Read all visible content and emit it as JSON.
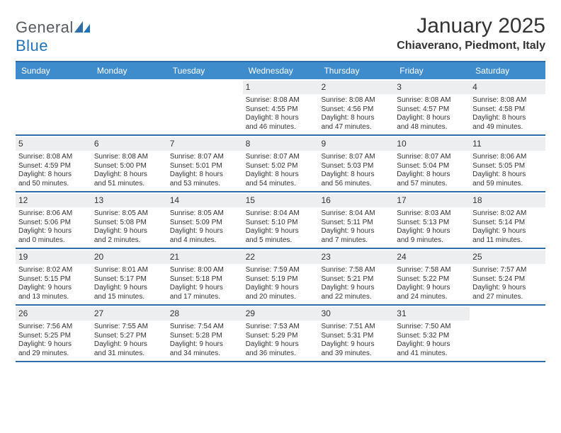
{
  "brand": {
    "word1": "General",
    "word2": "Blue"
  },
  "title": "January 2025",
  "location": "Chiaverano, Piedmont, Italy",
  "colors": {
    "header_bg": "#3e8ccc",
    "header_text": "#ffffff",
    "rule": "#2f6fa8",
    "daynum_bg": "#eceef0",
    "body_text": "#333333",
    "logo_gray": "#555b61",
    "logo_blue": "#2173b8",
    "page_bg": "#ffffff"
  },
  "typography": {
    "month_title_pt": 30,
    "location_pt": 16,
    "dayhdr_pt": 12,
    "daynum_pt": 12,
    "body_pt": 10,
    "logo_pt": 22
  },
  "day_headers": [
    "Sunday",
    "Monday",
    "Tuesday",
    "Wednesday",
    "Thursday",
    "Friday",
    "Saturday"
  ],
  "weeks": [
    [
      {
        "n": "",
        "sr": "",
        "ss": "",
        "d1": "",
        "d2": ""
      },
      {
        "n": "",
        "sr": "",
        "ss": "",
        "d1": "",
        "d2": ""
      },
      {
        "n": "",
        "sr": "",
        "ss": "",
        "d1": "",
        "d2": ""
      },
      {
        "n": "1",
        "sr": "Sunrise: 8:08 AM",
        "ss": "Sunset: 4:55 PM",
        "d1": "Daylight: 8 hours",
        "d2": "and 46 minutes."
      },
      {
        "n": "2",
        "sr": "Sunrise: 8:08 AM",
        "ss": "Sunset: 4:56 PM",
        "d1": "Daylight: 8 hours",
        "d2": "and 47 minutes."
      },
      {
        "n": "3",
        "sr": "Sunrise: 8:08 AM",
        "ss": "Sunset: 4:57 PM",
        "d1": "Daylight: 8 hours",
        "d2": "and 48 minutes."
      },
      {
        "n": "4",
        "sr": "Sunrise: 8:08 AM",
        "ss": "Sunset: 4:58 PM",
        "d1": "Daylight: 8 hours",
        "d2": "and 49 minutes."
      }
    ],
    [
      {
        "n": "5",
        "sr": "Sunrise: 8:08 AM",
        "ss": "Sunset: 4:59 PM",
        "d1": "Daylight: 8 hours",
        "d2": "and 50 minutes."
      },
      {
        "n": "6",
        "sr": "Sunrise: 8:08 AM",
        "ss": "Sunset: 5:00 PM",
        "d1": "Daylight: 8 hours",
        "d2": "and 51 minutes."
      },
      {
        "n": "7",
        "sr": "Sunrise: 8:07 AM",
        "ss": "Sunset: 5:01 PM",
        "d1": "Daylight: 8 hours",
        "d2": "and 53 minutes."
      },
      {
        "n": "8",
        "sr": "Sunrise: 8:07 AM",
        "ss": "Sunset: 5:02 PM",
        "d1": "Daylight: 8 hours",
        "d2": "and 54 minutes."
      },
      {
        "n": "9",
        "sr": "Sunrise: 8:07 AM",
        "ss": "Sunset: 5:03 PM",
        "d1": "Daylight: 8 hours",
        "d2": "and 56 minutes."
      },
      {
        "n": "10",
        "sr": "Sunrise: 8:07 AM",
        "ss": "Sunset: 5:04 PM",
        "d1": "Daylight: 8 hours",
        "d2": "and 57 minutes."
      },
      {
        "n": "11",
        "sr": "Sunrise: 8:06 AM",
        "ss": "Sunset: 5:05 PM",
        "d1": "Daylight: 8 hours",
        "d2": "and 59 minutes."
      }
    ],
    [
      {
        "n": "12",
        "sr": "Sunrise: 8:06 AM",
        "ss": "Sunset: 5:06 PM",
        "d1": "Daylight: 9 hours",
        "d2": "and 0 minutes."
      },
      {
        "n": "13",
        "sr": "Sunrise: 8:05 AM",
        "ss": "Sunset: 5:08 PM",
        "d1": "Daylight: 9 hours",
        "d2": "and 2 minutes."
      },
      {
        "n": "14",
        "sr": "Sunrise: 8:05 AM",
        "ss": "Sunset: 5:09 PM",
        "d1": "Daylight: 9 hours",
        "d2": "and 4 minutes."
      },
      {
        "n": "15",
        "sr": "Sunrise: 8:04 AM",
        "ss": "Sunset: 5:10 PM",
        "d1": "Daylight: 9 hours",
        "d2": "and 5 minutes."
      },
      {
        "n": "16",
        "sr": "Sunrise: 8:04 AM",
        "ss": "Sunset: 5:11 PM",
        "d1": "Daylight: 9 hours",
        "d2": "and 7 minutes."
      },
      {
        "n": "17",
        "sr": "Sunrise: 8:03 AM",
        "ss": "Sunset: 5:13 PM",
        "d1": "Daylight: 9 hours",
        "d2": "and 9 minutes."
      },
      {
        "n": "18",
        "sr": "Sunrise: 8:02 AM",
        "ss": "Sunset: 5:14 PM",
        "d1": "Daylight: 9 hours",
        "d2": "and 11 minutes."
      }
    ],
    [
      {
        "n": "19",
        "sr": "Sunrise: 8:02 AM",
        "ss": "Sunset: 5:15 PM",
        "d1": "Daylight: 9 hours",
        "d2": "and 13 minutes."
      },
      {
        "n": "20",
        "sr": "Sunrise: 8:01 AM",
        "ss": "Sunset: 5:17 PM",
        "d1": "Daylight: 9 hours",
        "d2": "and 15 minutes."
      },
      {
        "n": "21",
        "sr": "Sunrise: 8:00 AM",
        "ss": "Sunset: 5:18 PM",
        "d1": "Daylight: 9 hours",
        "d2": "and 17 minutes."
      },
      {
        "n": "22",
        "sr": "Sunrise: 7:59 AM",
        "ss": "Sunset: 5:19 PM",
        "d1": "Daylight: 9 hours",
        "d2": "and 20 minutes."
      },
      {
        "n": "23",
        "sr": "Sunrise: 7:58 AM",
        "ss": "Sunset: 5:21 PM",
        "d1": "Daylight: 9 hours",
        "d2": "and 22 minutes."
      },
      {
        "n": "24",
        "sr": "Sunrise: 7:58 AM",
        "ss": "Sunset: 5:22 PM",
        "d1": "Daylight: 9 hours",
        "d2": "and 24 minutes."
      },
      {
        "n": "25",
        "sr": "Sunrise: 7:57 AM",
        "ss": "Sunset: 5:24 PM",
        "d1": "Daylight: 9 hours",
        "d2": "and 27 minutes."
      }
    ],
    [
      {
        "n": "26",
        "sr": "Sunrise: 7:56 AM",
        "ss": "Sunset: 5:25 PM",
        "d1": "Daylight: 9 hours",
        "d2": "and 29 minutes."
      },
      {
        "n": "27",
        "sr": "Sunrise: 7:55 AM",
        "ss": "Sunset: 5:27 PM",
        "d1": "Daylight: 9 hours",
        "d2": "and 31 minutes."
      },
      {
        "n": "28",
        "sr": "Sunrise: 7:54 AM",
        "ss": "Sunset: 5:28 PM",
        "d1": "Daylight: 9 hours",
        "d2": "and 34 minutes."
      },
      {
        "n": "29",
        "sr": "Sunrise: 7:53 AM",
        "ss": "Sunset: 5:29 PM",
        "d1": "Daylight: 9 hours",
        "d2": "and 36 minutes."
      },
      {
        "n": "30",
        "sr": "Sunrise: 7:51 AM",
        "ss": "Sunset: 5:31 PM",
        "d1": "Daylight: 9 hours",
        "d2": "and 39 minutes."
      },
      {
        "n": "31",
        "sr": "Sunrise: 7:50 AM",
        "ss": "Sunset: 5:32 PM",
        "d1": "Daylight: 9 hours",
        "d2": "and 41 minutes."
      },
      {
        "n": "",
        "sr": "",
        "ss": "",
        "d1": "",
        "d2": ""
      }
    ]
  ]
}
